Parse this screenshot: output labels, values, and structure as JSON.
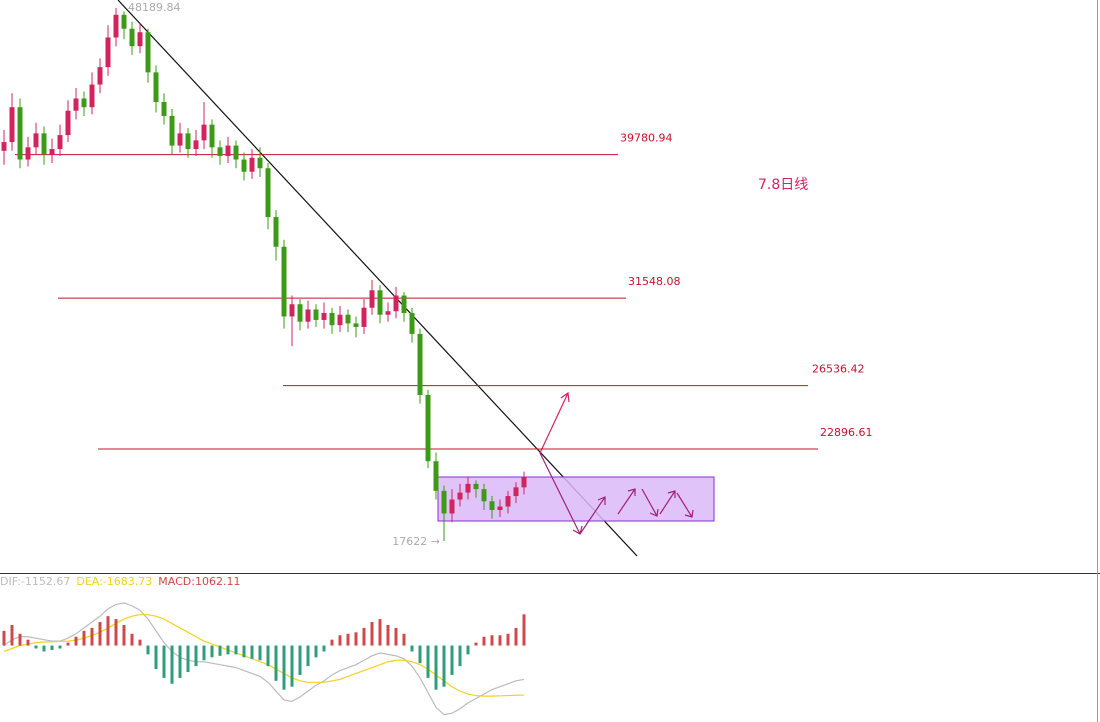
{
  "chart_data": [
    {
      "type": "candlestick",
      "annotation": "7.8日线",
      "low_label": "17622 →",
      "ylim": [
        15845,
        48649
      ],
      "up_color": "#d1245e",
      "down_color": "#3d9a17",
      "level_color": "#c8102e",
      "levels": [
        39780.94,
        31548.08,
        26536.42,
        22896.61
      ],
      "open": [
        40000,
        40500,
        42500,
        39500,
        40200,
        41000,
        39800,
        40100,
        40900,
        42300,
        43000,
        42500,
        43800,
        44800,
        46500,
        47800,
        47000,
        46000,
        46800,
        44500,
        42800,
        42000,
        40300,
        41000,
        40100,
        40600,
        41500,
        40200,
        39700,
        40300,
        39500,
        38800,
        39600,
        39000,
        36200,
        34500,
        30500,
        31200,
        30200,
        30900,
        30300,
        30700,
        30000,
        30600,
        30100,
        29900,
        31000,
        32000,
        30600,
        30800,
        31700,
        30700,
        29500,
        26000,
        22200,
        20500,
        19200,
        20000,
        20400,
        20900,
        20600,
        19900,
        19400,
        19600,
        20200,
        20700
      ],
      "high": [
        41200,
        43300,
        43000,
        40800,
        41600,
        41400,
        40700,
        41500,
        42900,
        43600,
        43400,
        44500,
        45300,
        47200,
        48189.84,
        48000,
        47400,
        47300,
        47000,
        44900,
        43300,
        42400,
        41600,
        41300,
        41200,
        42800,
        41800,
        40600,
        40800,
        40600,
        39900,
        40100,
        40200,
        39300,
        36600,
        34900,
        31700,
        31500,
        31400,
        31200,
        31300,
        31000,
        31100,
        30900,
        30500,
        31500,
        32600,
        32300,
        31300,
        32200,
        31900,
        31000,
        29800,
        26300,
        22700,
        20800,
        20600,
        20900,
        21300,
        21100,
        20900,
        20200,
        20000,
        20500,
        21000,
        21600
      ],
      "low": [
        39200,
        40000,
        39000,
        39100,
        39800,
        39200,
        39300,
        39700,
        40500,
        41800,
        42000,
        42100,
        43300,
        44300,
        46000,
        46400,
        45500,
        45600,
        43900,
        42200,
        41500,
        39800,
        39900,
        39600,
        39700,
        40100,
        39600,
        39200,
        39300,
        39000,
        38300,
        38400,
        38500,
        35500,
        33700,
        29800,
        28800,
        29700,
        29800,
        29900,
        29800,
        29500,
        29600,
        29600,
        29300,
        29500,
        30600,
        30100,
        30200,
        30400,
        30200,
        29000,
        25500,
        21800,
        20000,
        17622,
        18700,
        19600,
        20000,
        20100,
        19400,
        18900,
        19000,
        19200,
        19800,
        20300
      ],
      "close": [
        40500,
        42500,
        39500,
        40200,
        41000,
        39800,
        40100,
        40900,
        42300,
        43000,
        42500,
        43800,
        44800,
        46500,
        47800,
        47000,
        46000,
        46800,
        44500,
        42800,
        42000,
        40300,
        41000,
        40100,
        40600,
        41500,
        40200,
        39700,
        40300,
        39500,
        38800,
        39600,
        39000,
        36200,
        34500,
        30500,
        31200,
        30200,
        30900,
        30300,
        30700,
        30000,
        30600,
        30100,
        29900,
        31000,
        32000,
        30600,
        30800,
        31700,
        30700,
        29500,
        26000,
        22200,
        20500,
        19200,
        20000,
        20400,
        20900,
        20600,
        19900,
        19400,
        19600,
        20200,
        20700,
        21300
      ]
    },
    {
      "type": "macd",
      "ylim": [
        -2600,
        2400
      ],
      "series": [
        {
          "name": "DIF:-1152.67",
          "color": "#bbbbbb",
          "values": [
            0,
            200,
            300,
            300,
            250,
            200,
            150,
            150,
            250,
            400,
            600,
            800,
            1000,
            1250,
            1400,
            1450,
            1350,
            1200,
            900,
            500,
            100,
            -200,
            -400,
            -500,
            -550,
            -550,
            -600,
            -650,
            -700,
            -750,
            -850,
            -950,
            -1050,
            -1250,
            -1550,
            -1850,
            -1900,
            -1750,
            -1550,
            -1350,
            -1200,
            -1000,
            -850,
            -750,
            -650,
            -500,
            -350,
            -250,
            -300,
            -350,
            -450,
            -700,
            -1100,
            -1600,
            -2100,
            -2350,
            -2300,
            -2150,
            -1950,
            -1800,
            -1650,
            -1500,
            -1400,
            -1300,
            -1200,
            -1152.67
          ]
        },
        {
          "name": "DEA:-1683.73",
          "color": "#f2d21b",
          "values": [
            -200,
            -100,
            0,
            50,
            100,
            120,
            130,
            140,
            150,
            180,
            250,
            350,
            450,
            600,
            750,
            900,
            1000,
            1050,
            1050,
            1000,
            900,
            750,
            600,
            450,
            300,
            150,
            50,
            -50,
            -150,
            -250,
            -350,
            -450,
            -550,
            -650,
            -800,
            -950,
            -1100,
            -1200,
            -1250,
            -1250,
            -1250,
            -1200,
            -1150,
            -1050,
            -950,
            -850,
            -750,
            -650,
            -550,
            -500,
            -500,
            -550,
            -650,
            -800,
            -1000,
            -1200,
            -1400,
            -1550,
            -1650,
            -1700,
            -1720,
            -1720,
            -1710,
            -1700,
            -1690,
            -1683.73
          ]
        },
        {
          "name": "MACD:1062.11",
          "color": "#d04848",
          "neg_color": "#2e9e7a",
          "values": [
            500,
            700,
            400,
            200,
            -100,
            -200,
            -150,
            -100,
            100,
            300,
            500,
            600,
            800,
            1000,
            900,
            700,
            400,
            200,
            -300,
            -800,
            -1100,
            -1300,
            -1100,
            -900,
            -700,
            -500,
            -400,
            -350,
            -300,
            -300,
            -400,
            -450,
            -500,
            -700,
            -1200,
            -1500,
            -1400,
            -1000,
            -700,
            -400,
            -200,
            200,
            350,
            400,
            450,
            600,
            800,
            900,
            700,
            600,
            400,
            -200,
            -600,
            -1100,
            -1500,
            -1400,
            -1000,
            -700,
            -300,
            100,
            300,
            350,
            350,
            400,
            600,
            1062.11
          ]
        }
      ]
    }
  ]
}
